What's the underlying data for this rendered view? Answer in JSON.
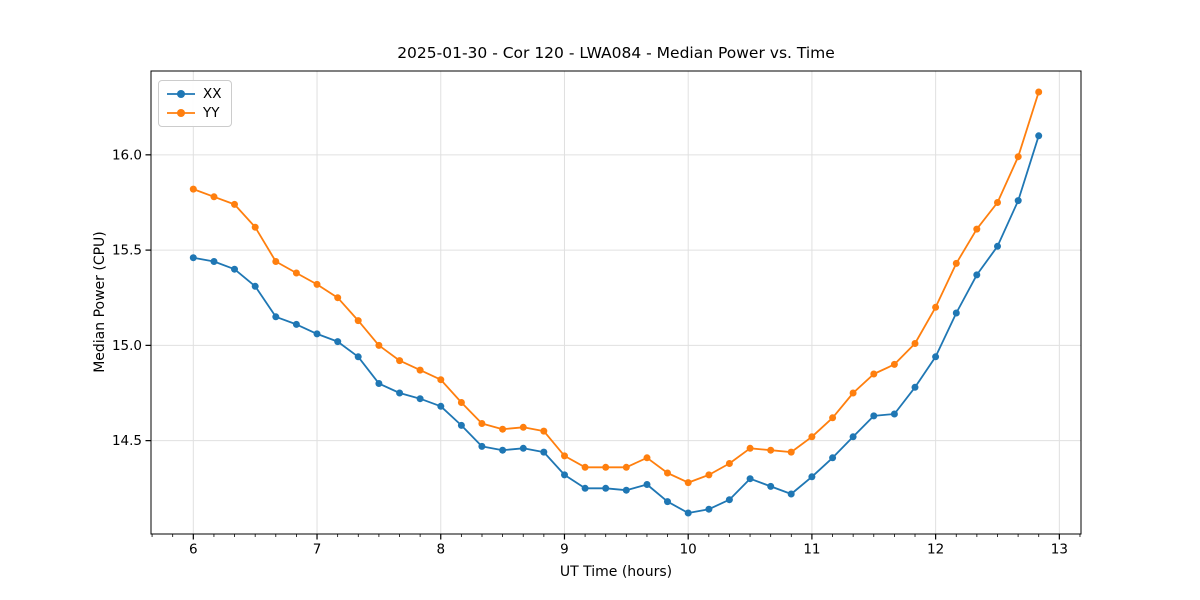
{
  "chart_data": {
    "type": "line",
    "title": "2025-01-30 - Cor 120 - LWA084 - Median Power vs. Time",
    "xlabel": "UT Time (hours)",
    "ylabel": "Median Power (CPU)",
    "xlim": [
      5.658,
      13.175
    ],
    "ylim": [
      14.01,
      16.44
    ],
    "xticks": [
      6,
      7,
      8,
      9,
      10,
      11,
      12,
      13
    ],
    "xtick_labels": [
      "6",
      "7",
      "8",
      "9",
      "10",
      "11",
      "12",
      "13"
    ],
    "yticks": [
      14.5,
      15.0,
      15.5,
      16.0
    ],
    "ytick_labels": [
      "14.5",
      "15.0",
      "15.5",
      "16.0"
    ],
    "x_minor_step": 0.166667,
    "grid": "major",
    "grid_color": "#e0e0e0",
    "axis_color": "#000000",
    "legend_position": "upper-left",
    "x": [
      6.0,
      6.167,
      6.333,
      6.5,
      6.667,
      6.833,
      7.0,
      7.167,
      7.333,
      7.5,
      7.667,
      7.833,
      8.0,
      8.167,
      8.333,
      8.5,
      8.667,
      8.833,
      9.0,
      9.167,
      9.333,
      9.5,
      9.667,
      9.833,
      10.0,
      10.167,
      10.333,
      10.5,
      10.667,
      10.833,
      11.0,
      11.167,
      11.333,
      11.5,
      11.667,
      11.833,
      12.0,
      12.167,
      12.333,
      12.5,
      12.667,
      12.833
    ],
    "series": [
      {
        "name": "XX",
        "color": "#1f77b4",
        "values": [
          15.46,
          15.44,
          15.4,
          15.31,
          15.15,
          15.11,
          15.06,
          15.02,
          14.94,
          14.8,
          14.75,
          14.72,
          14.68,
          14.58,
          14.47,
          14.45,
          14.46,
          14.44,
          14.32,
          14.25,
          14.25,
          14.24,
          14.27,
          14.18,
          14.12,
          14.14,
          14.19,
          14.3,
          14.26,
          14.22,
          14.31,
          14.41,
          14.52,
          14.63,
          14.64,
          14.78,
          14.94,
          15.17,
          15.37,
          15.52,
          15.76,
          16.1
        ]
      },
      {
        "name": "YY",
        "color": "#ff7f0e",
        "values": [
          15.82,
          15.78,
          15.74,
          15.62,
          15.44,
          15.38,
          15.32,
          15.25,
          15.13,
          15.0,
          14.92,
          14.87,
          14.82,
          14.7,
          14.59,
          14.56,
          14.57,
          14.55,
          14.42,
          14.36,
          14.36,
          14.36,
          14.41,
          14.33,
          14.28,
          14.32,
          14.38,
          14.46,
          14.45,
          14.44,
          14.52,
          14.62,
          14.75,
          14.85,
          14.9,
          15.01,
          15.2,
          15.43,
          15.61,
          15.75,
          15.99,
          16.33
        ]
      }
    ]
  }
}
